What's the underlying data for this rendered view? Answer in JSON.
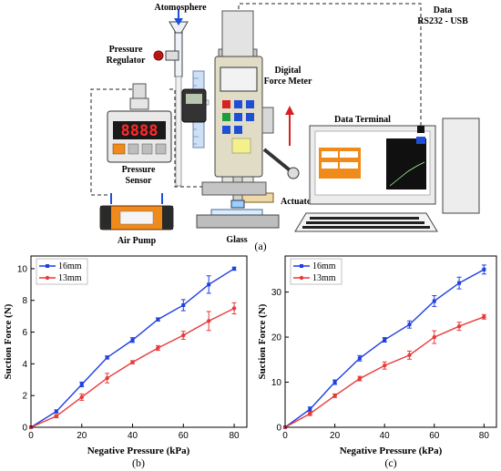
{
  "diagram": {
    "labels": {
      "atmosphere": "Atomosphere",
      "pressure_regulator_1": "Pressure",
      "pressure_regulator_2": "Regulator",
      "pressure_sensor_1": "Pressure",
      "pressure_sensor_2": "Sensor",
      "air_pump": "Air Pump",
      "glass": "Glass",
      "actuator": "Actuator",
      "digital_force_meter_1": "Digital",
      "digital_force_meter_2": "Force Meter",
      "data_1": "Data",
      "data_2": "RS232 - USB",
      "data_terminal": "Data Terminal",
      "sensor_display": "8888",
      "caption": "(a)"
    },
    "colors": {
      "blue": "#1f4fd6",
      "red": "#e02020",
      "orange": "#f08a1a",
      "gray": "#c8c8c8"
    }
  },
  "chart_data": [
    {
      "type": "line",
      "caption": "(b)",
      "xlabel": "Negative Pressure (kPa)",
      "ylabel": "Suction Force (N)",
      "xlim": [
        0,
        85
      ],
      "ylim": [
        0,
        10.8
      ],
      "xticks": [
        0,
        20,
        40,
        60,
        80
      ],
      "yticks": [
        0,
        2,
        4,
        6,
        8,
        10
      ],
      "legend": "top-left",
      "grid": false,
      "series": [
        {
          "name": "16mm",
          "color": "#1f3fe0",
          "x": [
            0,
            10,
            20,
            30,
            40,
            50,
            60,
            70,
            80
          ],
          "y": [
            0,
            1.0,
            2.7,
            4.4,
            5.5,
            6.8,
            7.7,
            9.0,
            10.0
          ],
          "err": [
            0,
            0.1,
            0.15,
            0.1,
            0.15,
            0.1,
            0.35,
            0.55,
            0.1
          ]
        },
        {
          "name": "13mm",
          "color": "#e83a3a",
          "x": [
            0,
            10,
            20,
            30,
            40,
            50,
            60,
            70,
            80
          ],
          "y": [
            0,
            0.7,
            1.9,
            3.1,
            4.1,
            5.0,
            5.8,
            6.7,
            7.5
          ],
          "err": [
            0,
            0.1,
            0.2,
            0.3,
            0.1,
            0.15,
            0.25,
            0.6,
            0.35
          ]
        }
      ]
    },
    {
      "type": "line",
      "caption": "(c)",
      "xlabel": "Negative Pressure (kPa)",
      "ylabel": "Suction Force (N)",
      "xlim": [
        0,
        85
      ],
      "ylim": [
        0,
        38
      ],
      "xticks": [
        0,
        20,
        40,
        60,
        80
      ],
      "yticks": [
        0,
        10,
        20,
        30
      ],
      "legend": "top-left",
      "grid": false,
      "series": [
        {
          "name": "16mm",
          "color": "#1f3fe0",
          "x": [
            0,
            10,
            20,
            30,
            40,
            50,
            60,
            70,
            80
          ],
          "y": [
            0,
            4.0,
            10.0,
            15.3,
            19.4,
            22.8,
            28.0,
            32.0,
            35.0
          ],
          "err": [
            0,
            0.5,
            0.5,
            0.6,
            0.5,
            0.8,
            1.2,
            1.3,
            1.0
          ]
        },
        {
          "name": "13mm",
          "color": "#e83a3a",
          "x": [
            0,
            10,
            20,
            30,
            40,
            50,
            60,
            70,
            80
          ],
          "y": [
            0,
            3.0,
            7.0,
            10.8,
            13.7,
            16.0,
            20.0,
            22.4,
            24.5
          ],
          "err": [
            0,
            0.4,
            0.4,
            0.5,
            0.8,
            0.9,
            1.4,
            0.9,
            0.5
          ]
        }
      ]
    }
  ]
}
